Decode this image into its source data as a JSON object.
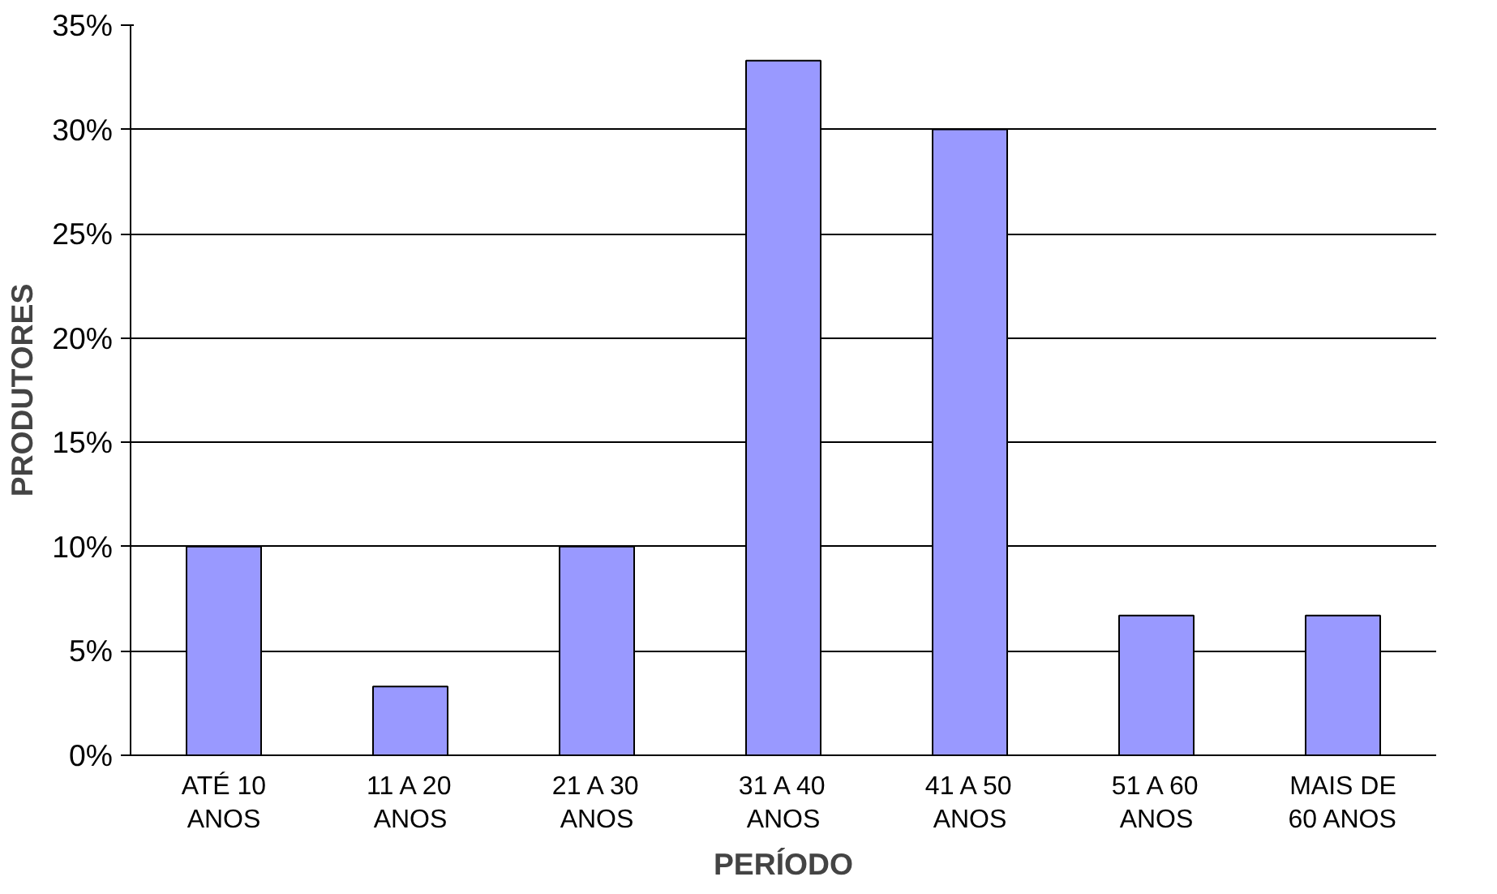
{
  "chart_data": {
    "type": "bar",
    "xlabel": "PERÍODO",
    "ylabel": "PRODUTORES",
    "categories": [
      "ATÉ 10\nANOS",
      "11 A 20\nANOS",
      "21 A 30\nANOS",
      "31 A 40\nANOS",
      "41 A 50\nANOS",
      "51 A 60\nANOS",
      "MAIS DE\n60 ANOS"
    ],
    "values": [
      10,
      3.3,
      10,
      33.3,
      30,
      6.7,
      6.7
    ],
    "color": "#9999ff",
    "ylim": [
      0,
      35
    ],
    "yticks": [
      {
        "value": 0,
        "label": "0%"
      },
      {
        "value": 5,
        "label": "5%"
      },
      {
        "value": 10,
        "label": "10%"
      },
      {
        "value": 15,
        "label": "15%"
      },
      {
        "value": 20,
        "label": "20%"
      },
      {
        "value": 25,
        "label": "25%"
      },
      {
        "value": 30,
        "label": "30%"
      },
      {
        "value": 35,
        "label": "35%"
      }
    ],
    "grid": "y"
  }
}
